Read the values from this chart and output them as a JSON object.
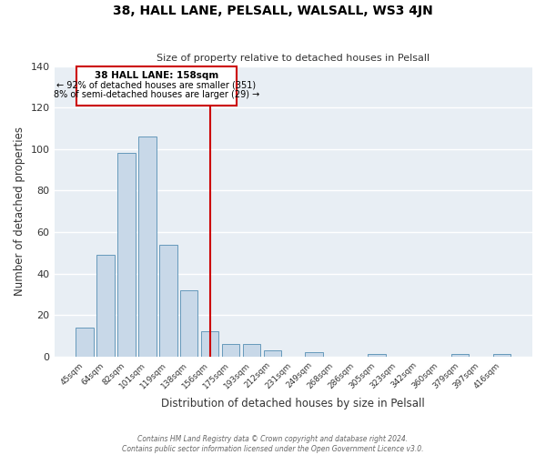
{
  "title": "38, HALL LANE, PELSALL, WALSALL, WS3 4JN",
  "subtitle": "Size of property relative to detached houses in Pelsall",
  "xlabel": "Distribution of detached houses by size in Pelsall",
  "ylabel": "Number of detached properties",
  "bar_labels": [
    "45sqm",
    "64sqm",
    "82sqm",
    "101sqm",
    "119sqm",
    "138sqm",
    "156sqm",
    "175sqm",
    "193sqm",
    "212sqm",
    "231sqm",
    "249sqm",
    "268sqm",
    "286sqm",
    "305sqm",
    "323sqm",
    "342sqm",
    "360sqm",
    "379sqm",
    "397sqm",
    "416sqm"
  ],
  "bar_values": [
    14,
    49,
    98,
    106,
    54,
    32,
    12,
    6,
    6,
    3,
    0,
    2,
    0,
    0,
    1,
    0,
    0,
    0,
    1,
    0,
    1
  ],
  "bar_color": "#c8d8e8",
  "bar_edge_color": "#6699bb",
  "vline_color": "#cc0000",
  "annotation_title": "38 HALL LANE: 158sqm",
  "annotation_line1": "← 92% of detached houses are smaller (351)",
  "annotation_line2": "8% of semi-detached houses are larger (29) →",
  "annotation_box_color": "#cc0000",
  "ylim": [
    0,
    140
  ],
  "yticks": [
    0,
    20,
    40,
    60,
    80,
    100,
    120,
    140
  ],
  "fig_bg_color": "#ffffff",
  "ax_bg_color": "#e8eef4",
  "grid_color": "#ffffff",
  "footer1": "Contains HM Land Registry data © Crown copyright and database right 2024.",
  "footer2": "Contains public sector information licensed under the Open Government Licence v3.0."
}
